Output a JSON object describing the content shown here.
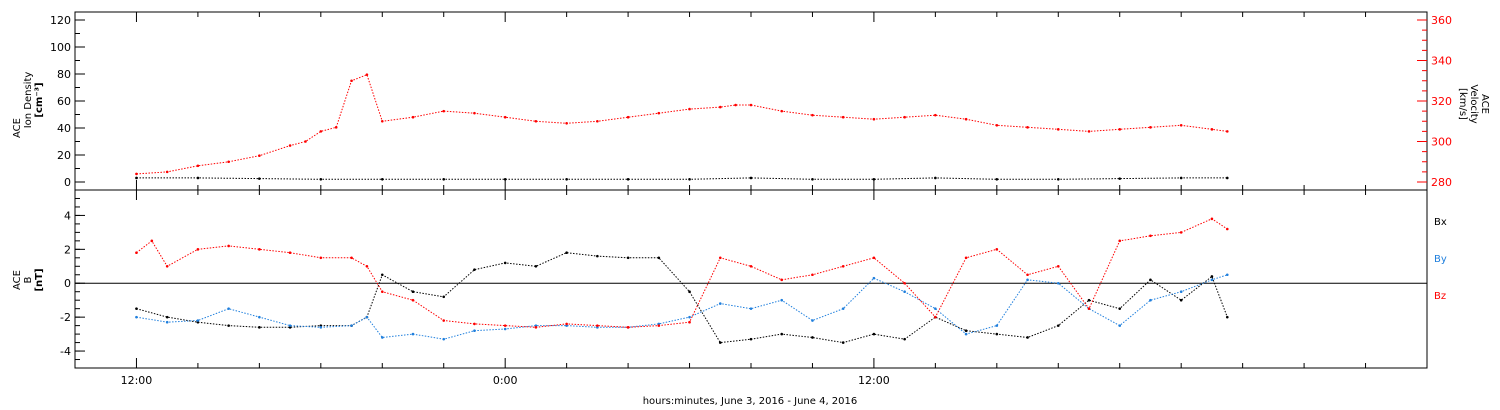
{
  "chart_data": [
    {
      "type": "scatter",
      "panel": "ion-density-velocity",
      "ylabel_left": [
        "ACE",
        "Ion Density",
        "[cm⁻³]"
      ],
      "ylabel_right": [
        "ACE",
        "Velocity",
        "[km/s]"
      ],
      "ylim_left": [
        0,
        120
      ],
      "yticks_left": [
        "0",
        "20",
        "40",
        "60",
        "80",
        "100",
        "120"
      ],
      "ylim_right": [
        280,
        360
      ],
      "yticks_right": [
        "280",
        "300",
        "320",
        "340",
        "360"
      ],
      "series": [
        {
          "axis": "left",
          "color": "#000000",
          "x": [
            -12,
            -10,
            -8,
            -6,
            -4,
            -2,
            0,
            2,
            4,
            6,
            8,
            10,
            12,
            14,
            16,
            18,
            20,
            22,
            23.5
          ],
          "y": [
            3,
            3,
            2.5,
            2,
            2,
            2,
            2,
            2,
            2,
            2,
            3,
            2,
            2,
            3,
            2,
            2,
            2.5,
            3,
            3
          ]
        },
        {
          "axis": "right",
          "color": "#ff0000",
          "x": [
            -12,
            -11,
            -10,
            -9,
            -8,
            -7,
            -6.5,
            -6,
            -5.5,
            -5,
            -4.5,
            -4,
            -3,
            -2,
            -1,
            0,
            1,
            2,
            3,
            4,
            5,
            6,
            7,
            7.5,
            8,
            9,
            10,
            11,
            12,
            13,
            14,
            15,
            16,
            17,
            18,
            19,
            20,
            21,
            22,
            23,
            23.5
          ],
          "y": [
            284,
            285,
            288,
            290,
            293,
            298,
            300,
            305,
            307,
            330,
            333,
            310,
            312,
            315,
            314,
            312,
            310,
            309,
            310,
            312,
            314,
            316,
            317,
            318,
            318,
            315,
            313,
            312,
            311,
            312,
            313,
            311,
            308,
            307,
            306,
            305,
            306,
            307,
            308,
            306,
            305
          ]
        }
      ]
    },
    {
      "type": "scatter",
      "panel": "magnetic-field",
      "ylabel_left": [
        "ACE",
        "B",
        "[nT]"
      ],
      "ylim_left": [
        -5,
        5.5
      ],
      "yticks_left": [
        "-4",
        "-2",
        "0",
        "2",
        "4"
      ],
      "zero_line": true,
      "series": [
        {
          "name": "Bx",
          "color": "#000000",
          "x": [
            -12,
            -11,
            -10,
            -9,
            -8,
            -7,
            -6,
            -5,
            -4.5,
            -4,
            -3,
            -2,
            -1,
            0,
            1,
            2,
            3,
            4,
            5,
            6,
            7,
            8,
            9,
            10,
            11,
            12,
            13,
            14,
            15,
            16,
            17,
            18,
            19,
            20,
            21,
            22,
            23,
            23.5
          ],
          "y": [
            -1.5,
            -2.0,
            -2.3,
            -2.5,
            -2.6,
            -2.6,
            -2.5,
            -2.5,
            -2.0,
            0.5,
            -0.5,
            -0.8,
            0.8,
            1.2,
            1.0,
            1.8,
            1.6,
            1.5,
            1.5,
            -0.5,
            -3.5,
            -3.3,
            -3.0,
            -3.2,
            -3.5,
            -3.0,
            -3.3,
            -2.0,
            -2.8,
            -3.0,
            -3.2,
            -2.5,
            -1.0,
            -1.5,
            0.2,
            -1.0,
            0.4,
            -2.0
          ]
        },
        {
          "name": "By",
          "color": "#1f7fdd",
          "x": [
            -12,
            -11,
            -10,
            -9,
            -8,
            -7,
            -6,
            -5,
            -4.5,
            -4,
            -3,
            -2,
            -1,
            0,
            1,
            2,
            3,
            4,
            5,
            6,
            7,
            8,
            9,
            10,
            11,
            12,
            13,
            14,
            15,
            16,
            17,
            18,
            19,
            20,
            21,
            22,
            23,
            23.5
          ],
          "y": [
            -2.0,
            -2.3,
            -2.2,
            -1.5,
            -2.0,
            -2.5,
            -2.6,
            -2.5,
            -2.0,
            -3.2,
            -3.0,
            -3.3,
            -2.8,
            -2.7,
            -2.5,
            -2.5,
            -2.6,
            -2.6,
            -2.4,
            -2.0,
            -1.2,
            -1.5,
            -1.0,
            -2.2,
            -1.5,
            0.3,
            -0.5,
            -1.5,
            -3.0,
            -2.5,
            0.2,
            0.0,
            -1.5,
            -2.5,
            -1.0,
            -0.5,
            0.2,
            0.5
          ]
        },
        {
          "name": "Bz",
          "color": "#ff0000",
          "x": [
            -12,
            -11.5,
            -11,
            -10,
            -9,
            -8,
            -7,
            -6,
            -5,
            -4.5,
            -4,
            -3,
            -2,
            -1,
            0,
            1,
            2,
            3,
            4,
            5,
            6,
            7,
            8,
            9,
            10,
            11,
            12,
            13,
            14,
            15,
            16,
            17,
            18,
            19,
            20,
            21,
            22,
            23,
            23.5
          ],
          "y": [
            1.8,
            2.5,
            1.0,
            2.0,
            2.2,
            2.0,
            1.8,
            1.5,
            1.5,
            1.0,
            -0.5,
            -1.0,
            -2.2,
            -2.4,
            -2.5,
            -2.6,
            -2.4,
            -2.5,
            -2.6,
            -2.5,
            -2.3,
            1.5,
            1.0,
            0.2,
            0.5,
            1.0,
            1.5,
            0.0,
            -2.0,
            1.5,
            2.0,
            0.5,
            1.0,
            -1.5,
            2.5,
            2.8,
            3.0,
            3.8,
            3.2
          ]
        }
      ],
      "legend": [
        "Bx",
        "By",
        "Bz"
      ]
    }
  ],
  "x_axis": {
    "range_hours": [
      -14,
      30
    ],
    "major_ticks": [
      "12:00",
      "0:00",
      "12:00"
    ],
    "major_tick_hours": [
      -12,
      0,
      12
    ],
    "label": "hours:minutes, June  3, 2016 - June  4, 2016"
  }
}
